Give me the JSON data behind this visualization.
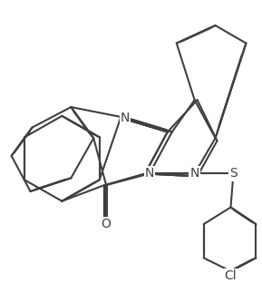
{
  "background_color": "#ffffff",
  "line_color": "#404040",
  "line_width": 1.5,
  "dbo": 0.018,
  "figsize": [
    2.89,
    3.12
  ],
  "dpi": 100,
  "xlim": [
    0,
    289
  ],
  "ylim": [
    0,
    312
  ]
}
